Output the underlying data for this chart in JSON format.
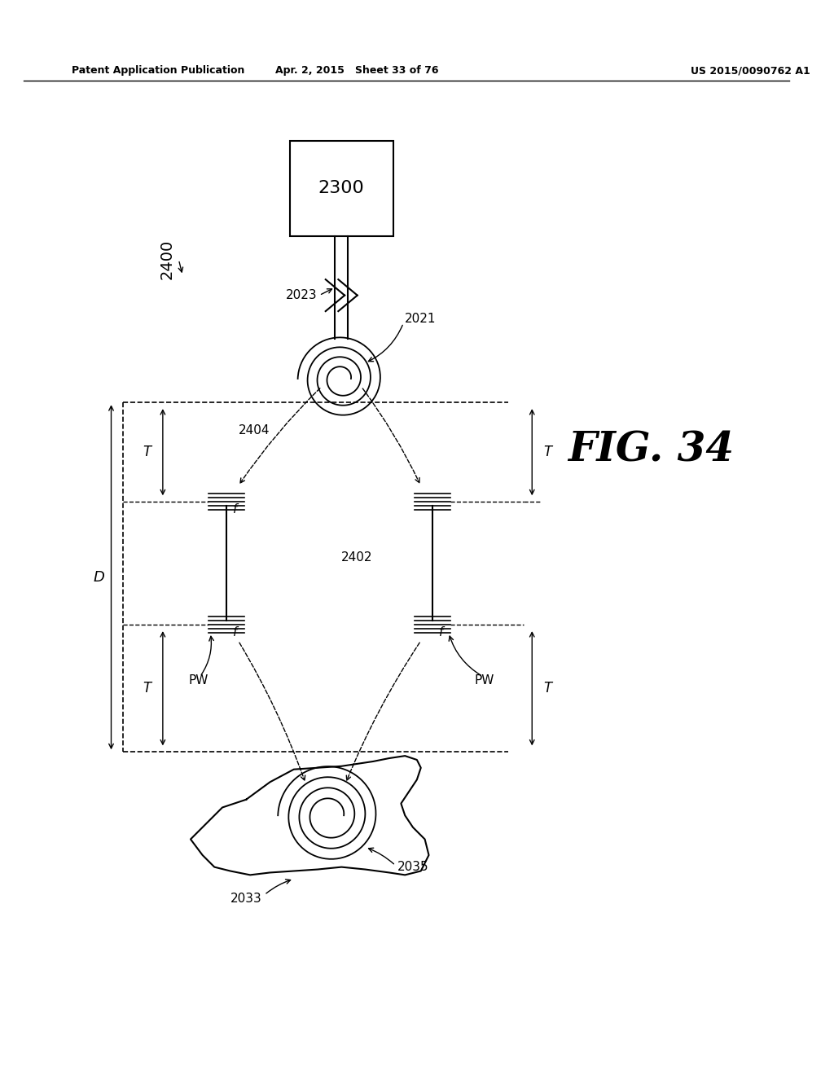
{
  "title": "FIG. 34",
  "header_left": "Patent Application Publication",
  "header_center": "Apr. 2, 2015   Sheet 33 of 76",
  "header_right": "US 2015/0090762 A1",
  "bg_color": "#ffffff",
  "text_color": "#000000",
  "label_2300": "2300",
  "label_2021": "2021",
  "label_2023": "2023",
  "label_2400": "2400",
  "label_2404": "2404",
  "label_2402": "2402",
  "label_2033": "2033",
  "label_2035": "2035",
  "label_D": "D",
  "label_T": "T",
  "label_f": "f",
  "label_PW": "PW"
}
